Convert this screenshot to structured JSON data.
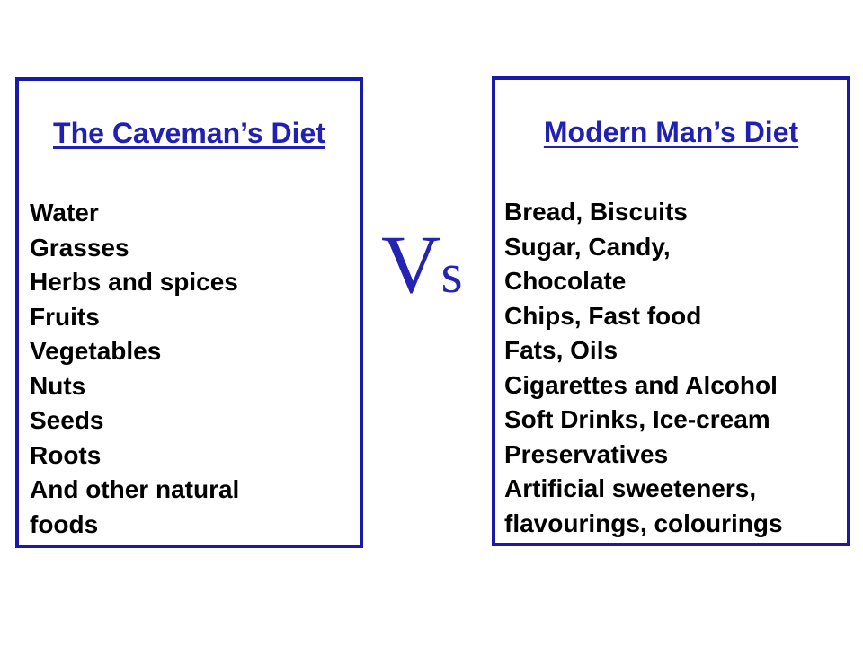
{
  "colors": {
    "panel_border": "#1a1aaa",
    "title_blue": "#2020b4",
    "vs_blue": "#2424b0",
    "list_text": "#000000",
    "background": "#ffffff"
  },
  "left_panel": {
    "title": "The Caveman’s Diet",
    "lines": [
      "Water",
      "Grasses",
      "Herbs and spices",
      "Fruits",
      "Vegetables",
      "Nuts",
      "Seeds",
      "Roots",
      "And other natural",
      "foods"
    ]
  },
  "vs": {
    "v": "V",
    "s": "s"
  },
  "right_panel": {
    "title": "Modern Man’s Diet",
    "lines": [
      "Bread, Biscuits",
      "Sugar, Candy,",
      "Chocolate",
      "Chips, Fast food",
      "Fats, Oils",
      "Cigarettes and Alcohol",
      "Soft Drinks, Ice-cream",
      "Preservatives",
      "Artificial sweeteners,",
      "flavourings, colourings"
    ]
  }
}
